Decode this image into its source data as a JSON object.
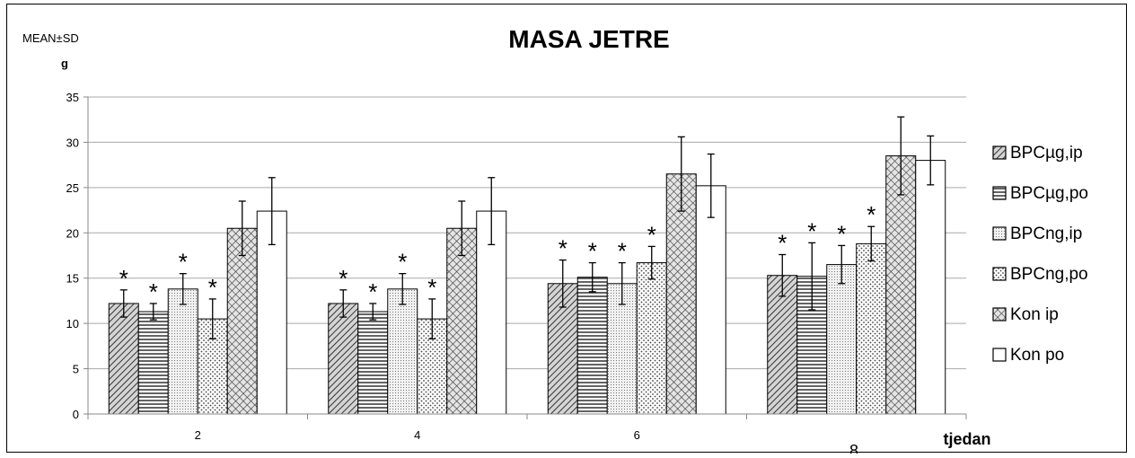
{
  "chart_data": {
    "type": "bar",
    "title": "MASA JETRE",
    "stat_label": "MEAN±SD",
    "ylabel": "g",
    "xlabel": "tjedan",
    "ylim": [
      0,
      35
    ],
    "yticks": [
      0,
      5,
      10,
      15,
      20,
      25,
      30,
      35
    ],
    "categories": [
      "2",
      "4",
      "6",
      "8"
    ],
    "grid": true,
    "legend_position": "right",
    "series": [
      {
        "name": "BPCµg,ip",
        "pattern": "diag-dense",
        "values": [
          12.2,
          12.2,
          14.4,
          15.3
        ],
        "errors": [
          1.5,
          1.5,
          2.6,
          2.3
        ],
        "significant": [
          true,
          true,
          true,
          true
        ]
      },
      {
        "name": "BPCµg,po",
        "pattern": "horizontal",
        "values": [
          11.3,
          11.3,
          15.1,
          15.2
        ],
        "errors": [
          0.9,
          0.9,
          1.6,
          3.7
        ],
        "significant": [
          true,
          true,
          true,
          true
        ]
      },
      {
        "name": "BPCng,ip",
        "pattern": "dots-dense",
        "values": [
          13.8,
          13.8,
          14.4,
          16.5
        ],
        "errors": [
          1.7,
          1.7,
          2.3,
          2.1
        ],
        "significant": [
          true,
          true,
          true,
          true
        ]
      },
      {
        "name": "BPCng,po",
        "pattern": "dots-sparse",
        "values": [
          10.5,
          10.5,
          16.7,
          18.8
        ],
        "errors": [
          2.2,
          2.2,
          1.8,
          1.9
        ],
        "significant": [
          true,
          true,
          true,
          true
        ]
      },
      {
        "name": "Kon ip",
        "pattern": "crosshatch",
        "values": [
          20.5,
          20.5,
          26.5,
          28.5
        ],
        "errors": [
          3.0,
          3.0,
          4.1,
          4.3
        ],
        "significant": [
          false,
          false,
          false,
          false
        ]
      },
      {
        "name": "Kon po",
        "pattern": "white",
        "values": [
          22.4,
          22.4,
          25.2,
          28.0
        ],
        "errors": [
          3.7,
          3.7,
          3.5,
          2.7
        ],
        "significant": [
          false,
          false,
          false,
          false
        ]
      }
    ],
    "significance_marker": "*"
  }
}
